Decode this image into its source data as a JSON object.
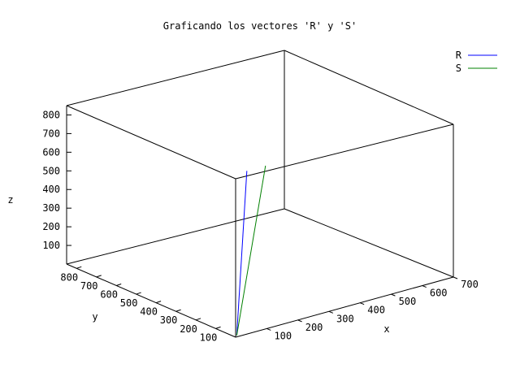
{
  "chart_data": {
    "type": "line",
    "title": "Graficando los vectores 'R' y 'S'",
    "xlabel": "x",
    "ylabel": "y",
    "zlabel": "z",
    "legend_position": "top-right",
    "x_ticks": [
      "100",
      "200",
      "300",
      "400",
      "500",
      "600",
      "700"
    ],
    "y_ticks": [
      "100",
      "200",
      "300",
      "400",
      "500",
      "600",
      "700",
      "800"
    ],
    "z_ticks": [
      "100",
      "200",
      "300",
      "400",
      "500",
      "600",
      "700",
      "800"
    ],
    "series": [
      {
        "name": "R",
        "color": "#0000ff",
        "start": [
          10,
          10,
          0
        ],
        "end": [
          100,
          100,
          800
        ]
      },
      {
        "name": "S",
        "color": "#008000",
        "start": [
          10,
          10,
          0
        ],
        "end": [
          160,
          100,
          800
        ]
      }
    ]
  }
}
